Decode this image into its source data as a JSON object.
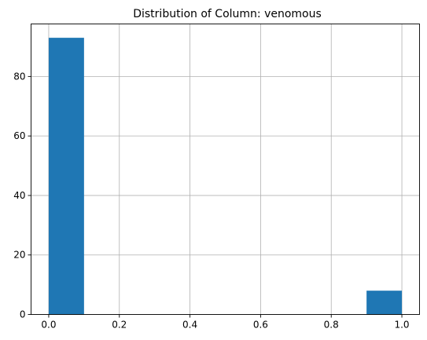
{
  "chart_data": {
    "type": "bar",
    "title": "Distribution of Column: venomous",
    "xlabel": "",
    "ylabel": "",
    "xlim": [
      -0.05,
      1.05
    ],
    "ylim": [
      0,
      97.65
    ],
    "grid": true,
    "bar_color": "#1f77b4",
    "bins": [
      {
        "x0": 0.0,
        "x1": 0.1,
        "value": 93
      },
      {
        "x0": 0.1,
        "x1": 0.2,
        "value": 0
      },
      {
        "x0": 0.2,
        "x1": 0.3,
        "value": 0
      },
      {
        "x0": 0.3,
        "x1": 0.4,
        "value": 0
      },
      {
        "x0": 0.4,
        "x1": 0.5,
        "value": 0
      },
      {
        "x0": 0.5,
        "x1": 0.6,
        "value": 0
      },
      {
        "x0": 0.6,
        "x1": 0.7,
        "value": 0
      },
      {
        "x0": 0.7,
        "x1": 0.8,
        "value": 0
      },
      {
        "x0": 0.8,
        "x1": 0.9,
        "value": 0
      },
      {
        "x0": 0.9,
        "x1": 1.0,
        "value": 8
      }
    ],
    "x_ticks": [
      {
        "value": 0.0,
        "label": "0.0"
      },
      {
        "value": 0.2,
        "label": "0.2"
      },
      {
        "value": 0.4,
        "label": "0.4"
      },
      {
        "value": 0.6,
        "label": "0.6"
      },
      {
        "value": 0.8,
        "label": "0.8"
      },
      {
        "value": 1.0,
        "label": "1.0"
      }
    ],
    "y_ticks": [
      {
        "value": 0,
        "label": "0"
      },
      {
        "value": 20,
        "label": "20"
      },
      {
        "value": 40,
        "label": "40"
      },
      {
        "value": 60,
        "label": "60"
      },
      {
        "value": 80,
        "label": "80"
      }
    ]
  }
}
